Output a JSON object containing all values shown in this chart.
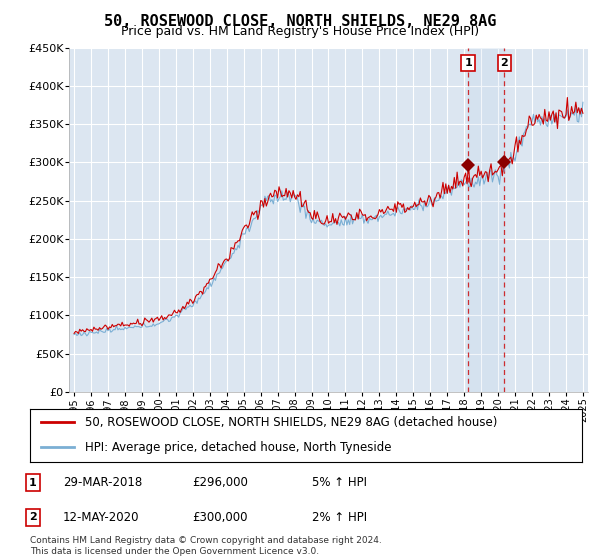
{
  "title": "50, ROSEWOOD CLOSE, NORTH SHIELDS, NE29 8AG",
  "subtitle": "Price paid vs. HM Land Registry's House Price Index (HPI)",
  "property_label": "50, ROSEWOOD CLOSE, NORTH SHIELDS, NE29 8AG (detached house)",
  "hpi_label": "HPI: Average price, detached house, North Tyneside",
  "ylim": [
    0,
    450000
  ],
  "yticks": [
    0,
    50000,
    100000,
    150000,
    200000,
    250000,
    300000,
    350000,
    400000,
    450000
  ],
  "xstart_year": 1995,
  "xend_year": 2025,
  "property_color": "#cc0000",
  "hpi_color": "#7bafd4",
  "sale1_year": 2018.23,
  "sale1_price": 296000,
  "sale1_label": "1",
  "sale1_date": "29-MAR-2018",
  "sale1_pct": "5%",
  "sale2_year": 2020.37,
  "sale2_price": 300000,
  "sale2_label": "2",
  "sale2_date": "12-MAY-2020",
  "sale2_pct": "2%",
  "plot_bg_color": "#dce6f1",
  "grid_color": "#ffffff",
  "footer_text": "Contains HM Land Registry data © Crown copyright and database right 2024.\nThis data is licensed under the Open Government Licence v3.0.",
  "title_fontsize": 11,
  "subtitle_fontsize": 9,
  "tick_fontsize": 8,
  "legend_fontsize": 8.5
}
